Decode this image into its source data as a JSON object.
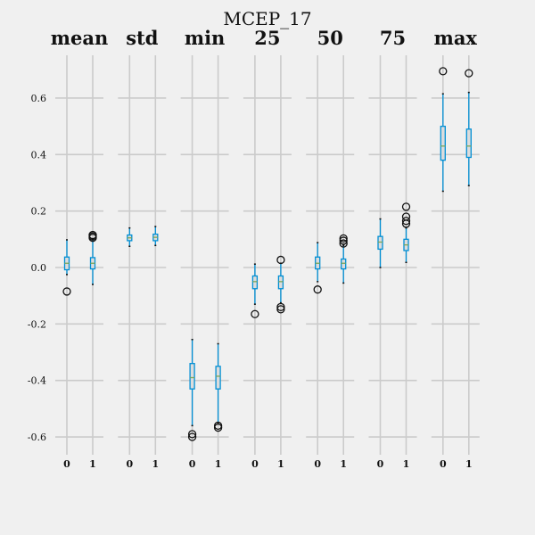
{
  "chart_data": {
    "type": "boxplot",
    "title": "MCEP_17",
    "ylim": [
      -0.66,
      0.75
    ],
    "yticks": [
      -0.6,
      -0.4,
      -0.2,
      0.0,
      0.2,
      0.4,
      0.6
    ],
    "ytick_labels": [
      "-0.6",
      "-0.4",
      "-0.2",
      "0.0",
      "0.2",
      "0.4",
      "0.6"
    ],
    "grid": true,
    "colors": {
      "background": "#f0f0f0",
      "grid": "#cbcbcb",
      "box": "#008fd5",
      "median": "#7aa65a",
      "outlier": "#111111"
    },
    "categories": [
      "0",
      "1"
    ],
    "panels": [
      {
        "title": "mean",
        "boxes": [
          {
            "group": "0",
            "whislo": -0.025,
            "q1": -0.008,
            "med": 0.015,
            "q3": 0.037,
            "whishi": 0.098,
            "fliers": [
              -0.085
            ]
          },
          {
            "group": "1",
            "whislo": -0.06,
            "q1": -0.005,
            "med": 0.015,
            "q3": 0.035,
            "whishi": 0.1,
            "fliers": [
              0.105,
              0.11,
              0.115
            ]
          }
        ]
      },
      {
        "title": "std",
        "boxes": [
          {
            "group": "0",
            "whislo": 0.075,
            "q1": 0.095,
            "med": 0.105,
            "q3": 0.115,
            "whishi": 0.14,
            "fliers": []
          },
          {
            "group": "1",
            "whislo": 0.078,
            "q1": 0.095,
            "med": 0.107,
            "q3": 0.118,
            "whishi": 0.145,
            "fliers": []
          }
        ]
      },
      {
        "title": "min",
        "boxes": [
          {
            "group": "0",
            "whislo": -0.56,
            "q1": -0.43,
            "med": -0.39,
            "q3": -0.34,
            "whishi": -0.255,
            "fliers": [
              -0.59,
              -0.6
            ]
          },
          {
            "group": "1",
            "whislo": -0.55,
            "q1": -0.43,
            "med": -0.385,
            "q3": -0.35,
            "whishi": -0.27,
            "fliers": [
              -0.56,
              -0.567
            ]
          }
        ]
      },
      {
        "title": "25",
        "boxes": [
          {
            "group": "0",
            "whislo": -0.13,
            "q1": -0.075,
            "med": -0.05,
            "q3": -0.03,
            "whishi": 0.012,
            "fliers": [
              -0.165
            ]
          },
          {
            "group": "1",
            "whislo": -0.125,
            "q1": -0.075,
            "med": -0.05,
            "q3": -0.03,
            "whishi": 0.015,
            "fliers": [
              0.027,
              -0.14,
              -0.148
            ]
          }
        ]
      },
      {
        "title": "50",
        "boxes": [
          {
            "group": "0",
            "whislo": -0.05,
            "q1": -0.005,
            "med": 0.015,
            "q3": 0.037,
            "whishi": 0.088,
            "fliers": [
              -0.078
            ]
          },
          {
            "group": "1",
            "whislo": -0.055,
            "q1": -0.005,
            "med": 0.015,
            "q3": 0.03,
            "whishi": 0.078,
            "fliers": [
              0.085,
              0.095,
              0.103
            ]
          }
        ]
      },
      {
        "title": "75",
        "boxes": [
          {
            "group": "0",
            "whislo": 0.0,
            "q1": 0.065,
            "med": 0.09,
            "q3": 0.11,
            "whishi": 0.172,
            "fliers": []
          },
          {
            "group": "1",
            "whislo": 0.018,
            "q1": 0.06,
            "med": 0.08,
            "q3": 0.1,
            "whishi": 0.14,
            "fliers": [
              0.155,
              0.165,
              0.18,
              0.215
            ]
          }
        ]
      },
      {
        "title": "max",
        "boxes": [
          {
            "group": "0",
            "whislo": 0.27,
            "q1": 0.38,
            "med": 0.43,
            "q3": 0.5,
            "whishi": 0.615,
            "fliers": [
              0.695
            ]
          },
          {
            "group": "1",
            "whislo": 0.29,
            "q1": 0.39,
            "med": 0.43,
            "q3": 0.49,
            "whishi": 0.62,
            "fliers": [
              0.688
            ]
          }
        ]
      }
    ]
  }
}
